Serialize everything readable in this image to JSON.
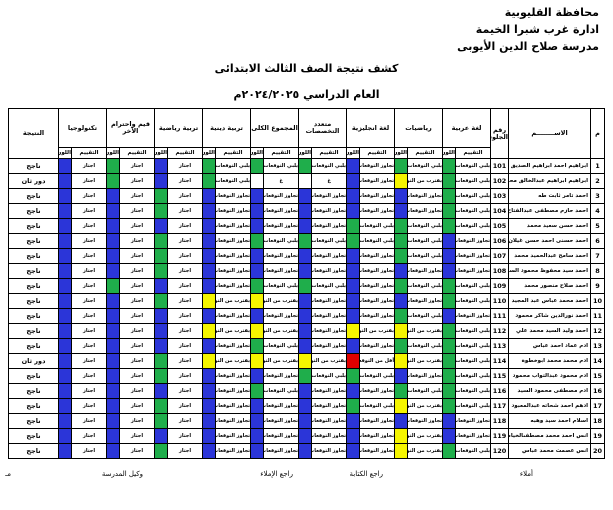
{
  "header": {
    "lines": [
      "محافظة القليوبية",
      "ادارة غرب شبرا الخيمة",
      "مدرسة صلاح الدين الأيوبى"
    ],
    "title": "كشف نتيجة الصف الثالث الابتدائى",
    "subtitle": "العام الدراسي ٢٠٢٤/٢٠٢٥م"
  },
  "table": {
    "columns": {
      "num": "م",
      "name": "الاســــــــم",
      "seat": "رقم الجلوس",
      "result": "النتيجة"
    },
    "subjects": [
      "لغة عربية",
      "رياضيات",
      "لغة انجليزية",
      "متعدد التخصصات",
      "المجموع الكلى",
      "تربية دينية",
      "تربية رياضية",
      "قيم واحترام الآخر",
      "تكنولوجيا"
    ],
    "sub_headers": [
      "التقييم",
      "اللون"
    ],
    "palette": {
      "b": "#2b35d8",
      "g": "#1fae4b",
      "y": "#f5f500",
      "r": "#e00000",
      "w": "#ffffff"
    },
    "rows": [
      {
        "num": "1",
        "name": "ابراهيم احمد ابراهيم الصديق",
        "seat": "101",
        "grades": [
          "يلبي التوقعات",
          "يلبي التوقعات",
          "تجاوز التوقعات",
          "يلبي التوقعات",
          "يلبي التوقعات",
          "يلبي التوقعات",
          "اجتاز",
          "اجتاز",
          "اجتاز"
        ],
        "colors": [
          "g",
          "g",
          "b",
          "g",
          "g",
          "g",
          "b",
          "g",
          "b"
        ],
        "result": "ناجح"
      },
      {
        "num": "2",
        "name": "ابراهيم ابراهيم عبدالخالق محمود",
        "seat": "102",
        "grades": [
          "يلبي التوقعات",
          "يقترب من التوقعات",
          "تجاوز التوقعات",
          "غ",
          "غ",
          "يلبي التوقعات",
          "اجتاز",
          "اجتاز",
          "اجتاز"
        ],
        "colors": [
          "g",
          "y",
          "b",
          "w",
          "w",
          "g",
          "b",
          "g",
          "b"
        ],
        "result": "دور ثان"
      },
      {
        "num": "3",
        "name": "احمد تامر ثابت طه",
        "seat": "103",
        "grades": [
          "يلبي التوقعات",
          "تجاوز التوقعات",
          "تجاوز التوقعات",
          "تجاوز التوقعات",
          "تجاوز التوقعات",
          "تجاوز التوقعات",
          "اجتاز",
          "اجتاز",
          "اجتاز"
        ],
        "colors": [
          "g",
          "b",
          "b",
          "b",
          "b",
          "b",
          "g",
          "b",
          "b"
        ],
        "result": "ناجح"
      },
      {
        "num": "4",
        "name": "احمد حازم مصطفى عبدالفتاح",
        "seat": "104",
        "grades": [
          "يلبي التوقعات",
          "تجاوز التوقعات",
          "تجاوز التوقعات",
          "تجاوز التوقعات",
          "تجاوز التوقعات",
          "تجاوز التوقعات",
          "اجتاز",
          "اجتاز",
          "اجتاز"
        ],
        "colors": [
          "g",
          "b",
          "b",
          "b",
          "b",
          "b",
          "g",
          "b",
          "b"
        ],
        "result": "ناجح"
      },
      {
        "num": "5",
        "name": "احمد حسن سعيد محمد",
        "seat": "105",
        "grades": [
          "يلبي التوقعات",
          "يلبي التوقعات",
          "يلبي التوقعات",
          "تجاوز التوقعات",
          "تجاوز التوقعات",
          "تجاوز التوقعات",
          "اجتاز",
          "اجتاز",
          "اجتاز"
        ],
        "colors": [
          "g",
          "g",
          "g",
          "b",
          "b",
          "b",
          "b",
          "b",
          "b"
        ],
        "result": "ناجح"
      },
      {
        "num": "6",
        "name": "احمد حسنى احمد حسن غيلان",
        "seat": "106",
        "grades": [
          "تجاوز التوقعات",
          "يلبي التوقعات",
          "يلبي التوقعات",
          "يلبي التوقعات",
          "يلبي التوقعات",
          "تجاوز التوقعات",
          "اجتاز",
          "اجتاز",
          "اجتاز"
        ],
        "colors": [
          "b",
          "g",
          "g",
          "g",
          "g",
          "b",
          "g",
          "b",
          "b"
        ],
        "result": "ناجح"
      },
      {
        "num": "7",
        "name": "احمد سامح عبدالحميد محمد",
        "seat": "107",
        "grades": [
          "تجاوز التوقعات",
          "يلبي التوقعات",
          "تجاوز التوقعات",
          "تجاوز التوقعات",
          "تجاوز التوقعات",
          "تجاوز التوقعات",
          "اجتاز",
          "اجتاز",
          "اجتاز"
        ],
        "colors": [
          "b",
          "g",
          "b",
          "b",
          "b",
          "b",
          "g",
          "b",
          "b"
        ],
        "result": "ناجح"
      },
      {
        "num": "8",
        "name": "احمد سيد محفوظ محمود السيد",
        "seat": "108",
        "grades": [
          "تجاوز التوقعات",
          "تجاوز التوقعات",
          "تجاوز التوقعات",
          "تجاوز التوقعات",
          "تجاوز التوقعات",
          "تجاوز التوقعات",
          "اجتاز",
          "اجتاز",
          "اجتاز"
        ],
        "colors": [
          "b",
          "b",
          "b",
          "b",
          "b",
          "b",
          "g",
          "b",
          "b"
        ],
        "result": "ناجح"
      },
      {
        "num": "9",
        "name": "احمد صلاح منصور محمد",
        "seat": "109",
        "grades": [
          "يلبي التوقعات",
          "يلبي التوقعات",
          "تجاوز التوقعات",
          "يلبي التوقعات",
          "يلبي التوقعات",
          "تجاوز التوقعات",
          "اجتاز",
          "اجتاز",
          "اجتاز"
        ],
        "colors": [
          "g",
          "g",
          "b",
          "g",
          "g",
          "b",
          "b",
          "g",
          "b"
        ],
        "result": "ناجح"
      },
      {
        "num": "10",
        "name": "احمد محمد عباس عبد المجيد",
        "seat": "110",
        "grades": [
          "يلبي التوقعات",
          "تجاوز التوقعات",
          "تجاوز التوقعات",
          "تجاوز التوقعات",
          "يقترب من التوقعات",
          "يقترب من التوقعات",
          "اجتاز",
          "اجتاز",
          "اجتاز"
        ],
        "colors": [
          "g",
          "b",
          "b",
          "b",
          "y",
          "y",
          "g",
          "b",
          "b"
        ],
        "result": "ناجح"
      },
      {
        "num": "11",
        "name": "احمد نورالدين شاكر محمود",
        "seat": "111",
        "grades": [
          "تجاوز التوقعات",
          "يلبي التوقعات",
          "تجاوز التوقعات",
          "تجاوز التوقعات",
          "تجاوز التوقعات",
          "تجاوز التوقعات",
          "اجتاز",
          "اجتاز",
          "اجتاز"
        ],
        "colors": [
          "b",
          "g",
          "b",
          "b",
          "b",
          "b",
          "b",
          "b",
          "b"
        ],
        "result": "ناجح"
      },
      {
        "num": "12",
        "name": "احمد وليد السيد محمد علي",
        "seat": "112",
        "grades": [
          "يلبي التوقعات",
          "يقترب من التوقعات",
          "يقترب من التوقعات",
          "تجاوز التوقعات",
          "يقترب من التوقعات",
          "يقترب من التوقعات",
          "اجتاز",
          "اجتاز",
          "اجتاز"
        ],
        "colors": [
          "g",
          "y",
          "y",
          "b",
          "y",
          "y",
          "b",
          "b",
          "b"
        ],
        "result": "ناجح"
      },
      {
        "num": "13",
        "name": "ادم عماد احمد عباس",
        "seat": "113",
        "grades": [
          "يلبي التوقعات",
          "يلبي التوقعات",
          "تجاوز التوقعات",
          "تجاوز التوقعات",
          "يلبي التوقعات",
          "تجاوز التوقعات",
          "اجتاز",
          "اجتاز",
          "اجتاز"
        ],
        "colors": [
          "g",
          "g",
          "b",
          "b",
          "g",
          "b",
          "b",
          "b",
          "b"
        ],
        "result": "ناجح"
      },
      {
        "num": "14",
        "name": "ادم محمد محمد ابوخطوة",
        "seat": "114",
        "grades": [
          "يلبي التوقعات",
          "يقترب من التوقعات",
          "أقل من التوقعات",
          "يقترب من التوقعات",
          "يقترب من التوقعات",
          "يقترب من التوقعات",
          "اجتاز",
          "اجتاز",
          "اجتاز"
        ],
        "colors": [
          "g",
          "y",
          "r",
          "y",
          "y",
          "y",
          "g",
          "b",
          "b"
        ],
        "result": "دور ثان"
      },
      {
        "num": "15",
        "name": "ادم محمود عبدالتواب محمود",
        "seat": "115",
        "grades": [
          "يلبي التوقعات",
          "تجاوز التوقعات",
          "يلبي التوقعات",
          "يلبي التوقعات",
          "تجاوز التوقعات",
          "تجاوز التوقعات",
          "اجتاز",
          "اجتاز",
          "اجتاز"
        ],
        "colors": [
          "g",
          "b",
          "g",
          "g",
          "b",
          "b",
          "g",
          "b",
          "b"
        ],
        "result": "ناجح"
      },
      {
        "num": "16",
        "name": "ادم مصطفى محمود السيد",
        "seat": "116",
        "grades": [
          "يلبي التوقعات",
          "يلبي التوقعات",
          "تجاوز التوقعات",
          "تجاوز التوقعات",
          "يلبي التوقعات",
          "تجاوز التوقعات",
          "اجتاز",
          "اجتاز",
          "اجتاز"
        ],
        "colors": [
          "g",
          "g",
          "b",
          "b",
          "g",
          "b",
          "b",
          "b",
          "b"
        ],
        "result": "ناجح"
      },
      {
        "num": "17",
        "name": "ادهم احمد شحاته عبدالمعبود",
        "seat": "117",
        "grades": [
          "يلبي التوقعات",
          "يقترب من التوقعات",
          "يلبي التوقعات",
          "تجاوز التوقعات",
          "تجاوز التوقعات",
          "تجاوز التوقعات",
          "اجتاز",
          "اجتاز",
          "اجتاز"
        ],
        "colors": [
          "g",
          "y",
          "g",
          "b",
          "b",
          "b",
          "g",
          "b",
          "b"
        ],
        "result": "ناجح"
      },
      {
        "num": "18",
        "name": "اسلام احمد سيد وهبه",
        "seat": "118",
        "grades": [
          "تجاوز التوقعات",
          "تجاوز التوقعات",
          "تجاوز التوقعات",
          "تجاوز التوقعات",
          "تجاوز التوقعات",
          "تجاوز التوقعات",
          "اجتاز",
          "اجتاز",
          "اجتاز"
        ],
        "colors": [
          "b",
          "b",
          "b",
          "b",
          "b",
          "b",
          "g",
          "b",
          "b"
        ],
        "result": "ناجح"
      },
      {
        "num": "19",
        "name": "انس احمد محمد مصطفىالخياط",
        "seat": "119",
        "grades": [
          "تجاوز التوقعات",
          "يقترب من التوقعات",
          "تجاوز التوقعات",
          "تجاوز التوقعات",
          "تجاوز التوقعات",
          "تجاوز التوقعات",
          "اجتاز",
          "اجتاز",
          "اجتاز"
        ],
        "colors": [
          "b",
          "y",
          "b",
          "b",
          "b",
          "b",
          "b",
          "b",
          "b"
        ],
        "result": "ناجح"
      },
      {
        "num": "20",
        "name": "انس عصمت محمد عباس",
        "seat": "120",
        "grades": [
          "يلبي التوقعات",
          "يقترب من التوقعات",
          "تجاوز التوقعات",
          "تجاوز التوقعات",
          "تجاوز التوقعات",
          "تجاوز التوقعات",
          "اجتاز",
          "اجتاز",
          "اجتاز"
        ],
        "colors": [
          "g",
          "y",
          "b",
          "b",
          "b",
          "b",
          "g",
          "b",
          "b"
        ],
        "result": "ناجح"
      }
    ]
  },
  "footer": [
    "أملاء",
    "راجع الكتابة",
    "راجع الإملاء",
    "وكيل المدرسة",
    "مـ"
  ]
}
